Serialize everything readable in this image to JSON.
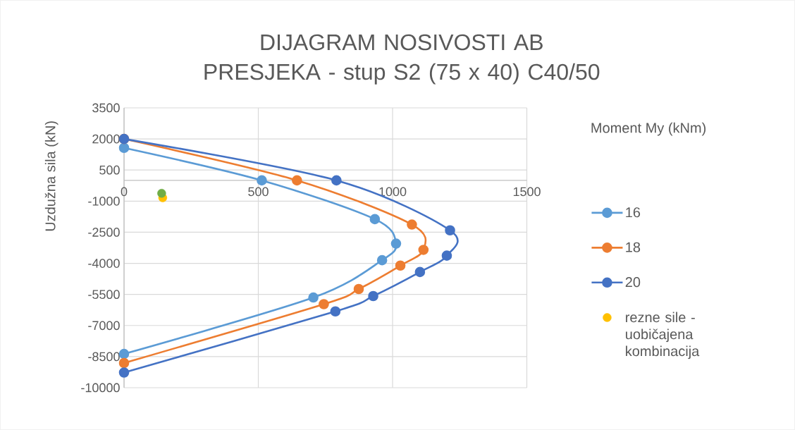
{
  "chart_data": {
    "type": "line",
    "title": "DIJAGRAM NOSIVOSTI AB PRESJEKA - stup S2 (75 x 40) C40/50",
    "xlabel": "Moment My (kNm)",
    "ylabel": "Uzdužna sila (kN)",
    "xlim": [
      0,
      1500
    ],
    "ylim": [
      -10000,
      3500
    ],
    "xticks": [
      0,
      500,
      1000,
      1500
    ],
    "yticks": [
      -10000,
      -8500,
      -7000,
      -5500,
      -4000,
      -2500,
      -1000,
      500,
      2000,
      3500
    ],
    "grid": true,
    "legend": "right",
    "marker": "circle",
    "series": [
      {
        "name": "16",
        "color": "#5b9bd5",
        "x": [
          0,
          513,
          934,
          1013,
          961,
          705,
          0
        ],
        "values": [
          1570,
          0,
          -1870,
          -3050,
          -3850,
          -5650,
          -8370
        ]
      },
      {
        "name": "18",
        "color": "#ed7d31",
        "x": [
          0,
          644,
          1072,
          1115,
          1029,
          874,
          744,
          0
        ],
        "values": [
          2000,
          0,
          -2130,
          -3350,
          -4110,
          -5240,
          -5970,
          -8810
        ]
      },
      {
        "name": "20",
        "color": "#4472c4",
        "x": [
          0,
          791,
          1214,
          1202,
          1102,
          928,
          787,
          0
        ],
        "values": [
          2000,
          0,
          -2410,
          -3630,
          -4420,
          -5580,
          -6320,
          -9270
        ]
      },
      {
        "name": "rezne sile - uobičajena kombinacija",
        "type": "scatter",
        "color": "#ffc000",
        "x": [
          144
        ],
        "values": [
          -840
        ]
      },
      {
        "type": "scatter",
        "color": "#70ad47",
        "x": [
          140
        ],
        "values": [
          -620
        ]
      }
    ]
  }
}
